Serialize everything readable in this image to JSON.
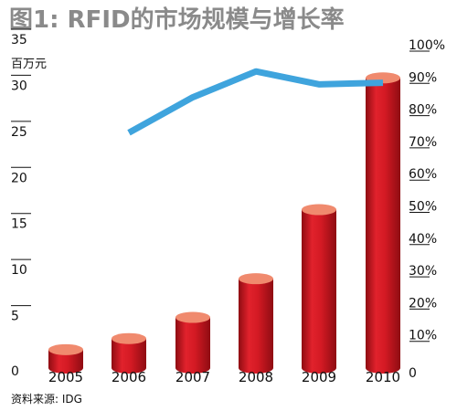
{
  "chart_data": {
    "type": "bar",
    "title": "图1: RFID的市场规模与增长率",
    "left_axis_unit": "百万元",
    "source": "资料来源: IDG",
    "categories": [
      "2005",
      "2006",
      "2007",
      "2008",
      "2009",
      "2010"
    ],
    "series": [
      {
        "kind": "bar",
        "axis": "left",
        "values": [
          2.0,
          3.2,
          5.5,
          9.7,
          17.2,
          31.5
        ]
      },
      {
        "kind": "line",
        "axis": "right",
        "x": [
          "2006",
          "2007",
          "2008",
          "2009",
          "2010"
        ],
        "values": [
          73,
          84,
          92,
          88,
          88.5
        ]
      }
    ],
    "left_axis": {
      "ticks": [
        "0",
        "5",
        "10",
        "15",
        "20",
        "25",
        "30",
        "35"
      ],
      "range": [
        0,
        35
      ]
    },
    "right_axis": {
      "ticks": [
        "0",
        "10%",
        "20%",
        "30%",
        "40%",
        "50%",
        "60%",
        "70%",
        "80%",
        "90%",
        "100%"
      ],
      "range": [
        0,
        100
      ]
    },
    "grid": false,
    "legend": "none",
    "colors": {
      "bar": "#d41a24",
      "bar_dark": "#8f0c12",
      "bar_top": "#f08a6e",
      "line": "#3fa4dd",
      "title": "#8a8a8a"
    }
  }
}
